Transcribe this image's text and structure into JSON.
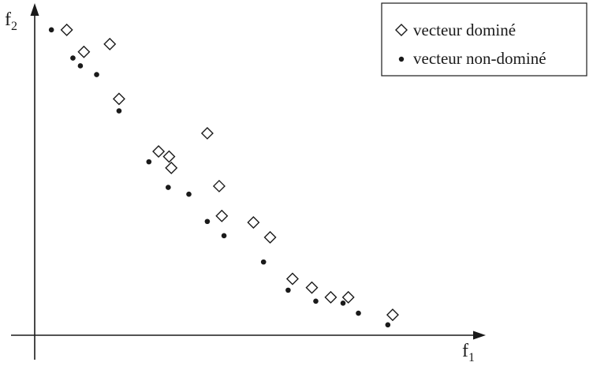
{
  "chart_data": {
    "type": "scatter",
    "title": "",
    "xlabel": "f",
    "xlabel_sub": "1",
    "ylabel": "f",
    "ylabel_sub": "2",
    "xlim": [
      0,
      100
    ],
    "ylim": [
      0,
      100
    ],
    "grid": false,
    "legend_position": "top-right",
    "series": [
      {
        "name": "vecteur dominé",
        "marker": "diamond",
        "points": [
          {
            "x": 7.3,
            "y": 94.2
          },
          {
            "x": 11.2,
            "y": 87.4
          },
          {
            "x": 17.1,
            "y": 89.8
          },
          {
            "x": 19.2,
            "y": 72.9
          },
          {
            "x": 28.2,
            "y": 56.7
          },
          {
            "x": 30.6,
            "y": 55.1
          },
          {
            "x": 31.1,
            "y": 51.6
          },
          {
            "x": 39.3,
            "y": 62.3
          },
          {
            "x": 42.0,
            "y": 46.0
          },
          {
            "x": 42.6,
            "y": 36.8
          },
          {
            "x": 49.8,
            "y": 34.8
          },
          {
            "x": 53.6,
            "y": 30.2
          },
          {
            "x": 58.7,
            "y": 17.4
          },
          {
            "x": 63.1,
            "y": 14.7
          },
          {
            "x": 67.4,
            "y": 11.7
          },
          {
            "x": 71.4,
            "y": 11.7
          },
          {
            "x": 81.5,
            "y": 6.3
          }
        ]
      },
      {
        "name": "vecteur non-dominé",
        "marker": "dot",
        "points": [
          {
            "x": 3.8,
            "y": 94.2
          },
          {
            "x": 8.7,
            "y": 85.5
          },
          {
            "x": 10.4,
            "y": 83.1
          },
          {
            "x": 14.1,
            "y": 80.4
          },
          {
            "x": 19.2,
            "y": 69.2
          },
          {
            "x": 26.0,
            "y": 53.5
          },
          {
            "x": 30.4,
            "y": 45.6
          },
          {
            "x": 35.1,
            "y": 43.5
          },
          {
            "x": 39.3,
            "y": 35.1
          },
          {
            "x": 43.1,
            "y": 30.7
          },
          {
            "x": 52.1,
            "y": 22.6
          },
          {
            "x": 57.7,
            "y": 13.9
          },
          {
            "x": 64.0,
            "y": 10.5
          },
          {
            "x": 70.2,
            "y": 9.9
          },
          {
            "x": 73.7,
            "y": 6.8
          },
          {
            "x": 80.4,
            "y": 3.2
          }
        ]
      }
    ]
  }
}
